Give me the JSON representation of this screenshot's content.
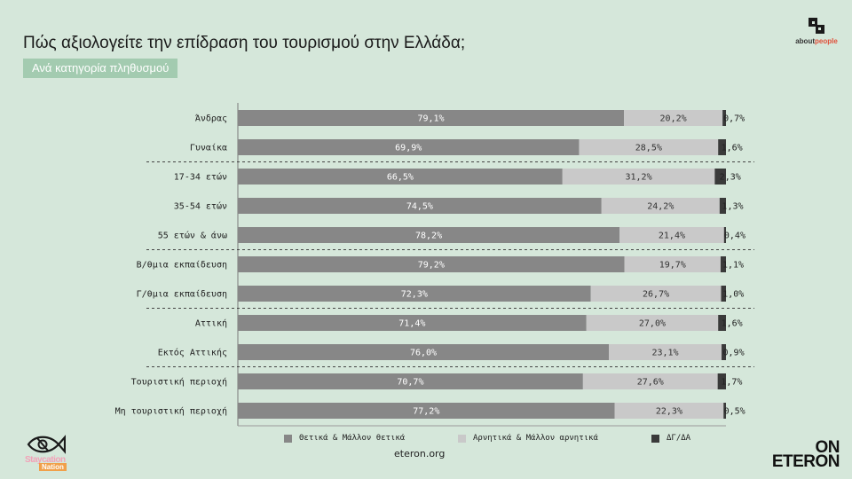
{
  "header": {
    "title": "Πώς αξιολογείτε την επίδραση του τουρισμού στην Ελλάδα;",
    "subtitle": "Ανά κατηγορία πληθυσμού"
  },
  "logo_top_right": {
    "text_a": "about",
    "text_b": "people"
  },
  "footer": {
    "source": "eteron.org",
    "brand_left_line1": "Staycation",
    "brand_left_line2": "Nation",
    "brand_right_line1": "ON",
    "brand_right_line2": "ETERON"
  },
  "colors": {
    "positive": "#878787",
    "negative": "#c9c9c9",
    "dk": "#3a3a3a",
    "background": "#d5e7da"
  },
  "chart_data": {
    "type": "bar",
    "orientation": "horizontal",
    "stacked": true,
    "xlim": [
      0,
      100
    ],
    "categories": [
      "Άνδρας",
      "Γυναίκα",
      "17-34 ετών",
      "35-54 ετών",
      "55 ετών & άνω",
      "Β/θμια εκπαίδευση",
      "Γ/θμια εκπαίδευση",
      "Αττική",
      "Εκτός Αττικής",
      "Τουριστική περιοχή",
      "Μη τουριστική περιοχή"
    ],
    "group_separators_after": [
      1,
      4,
      6,
      8
    ],
    "series": [
      {
        "name": "Θετικά & Μάλλον θετικά",
        "values": [
          79.1,
          69.9,
          66.5,
          74.5,
          78.2,
          79.2,
          72.3,
          71.4,
          76.0,
          70.7,
          77.2
        ],
        "labels": [
          "79,1%",
          "69,9%",
          "66,5%",
          "74,5%",
          "78,2%",
          "79,2%",
          "72,3%",
          "71,4%",
          "76,0%",
          "70,7%",
          "77,2%"
        ]
      },
      {
        "name": "Αρνητικά & Μάλλον αρνητικά",
        "values": [
          20.2,
          28.5,
          31.2,
          24.2,
          21.4,
          19.7,
          26.7,
          27.0,
          23.1,
          27.6,
          22.3
        ],
        "labels": [
          "20,2%",
          "28,5%",
          "31,2%",
          "24,2%",
          "21,4%",
          "19,7%",
          "26,7%",
          "27,0%",
          "23,1%",
          "27,6%",
          "22,3%"
        ]
      },
      {
        "name": "ΔΓ/ΔΑ",
        "values": [
          0.7,
          1.6,
          2.3,
          1.3,
          0.4,
          1.1,
          1.0,
          1.6,
          0.9,
          1.7,
          0.5
        ],
        "labels": [
          "0,7%",
          "1,6%",
          "2,3%",
          "1,3%",
          "0,4%",
          "1,1%",
          "1,0%",
          "1,6%",
          "0,9%",
          "1,7%",
          "0,5%"
        ]
      }
    ]
  }
}
